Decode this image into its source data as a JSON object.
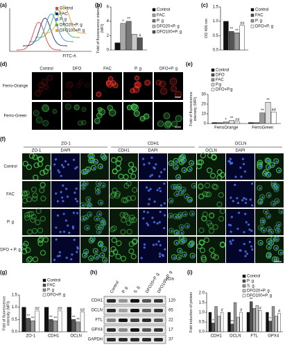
{
  "panel_labels": [
    "(a)",
    "(b)",
    "(c)",
    "(d)",
    "(e)",
    "(f)",
    "(g)",
    "(h)",
    "(i)"
  ],
  "flow": {
    "legend": [
      {
        "name": "Control",
        "color": "#e8413c"
      },
      {
        "name": "FAC",
        "color": "#1f2f6b"
      },
      {
        "name": "P. g",
        "color": "#3d8fd6"
      },
      {
        "name": "DFO20+P. g",
        "color": "#4caf50"
      },
      {
        "name": "DFO100+P. g",
        "color": "#f0a030"
      }
    ],
    "xlabel": "FITC-A"
  },
  "chart_data": [
    {
      "type": "bar",
      "ylabel": "Fold of fluorescence intensity (MFI)",
      "categories": [
        null
      ],
      "series": [
        {
          "name": "Control",
          "color": "#111111",
          "values": [
            1
          ]
        },
        {
          "name": "FAC",
          "color": "#a8a8a8",
          "values": [
            3.7
          ],
          "sig": [
            "*"
          ]
        },
        {
          "name": "P. g",
          "color": "#777777",
          "values": [
            4.0
          ],
          "sig": [
            "**"
          ]
        },
        {
          "name": "DFO20+P. g",
          "color": "#c8c8c8",
          "values": [
            2.2
          ]
        },
        {
          "name": "DFO100+P. g",
          "color": "#555555",
          "values": [
            1.7
          ],
          "sig": [
            "#"
          ]
        }
      ],
      "ylim": [
        0,
        6
      ],
      "yticks": [
        0,
        2,
        4,
        6
      ]
    },
    {
      "type": "bar",
      "ylabel": "OD 405 nm",
      "categories": [
        null
      ],
      "series": [
        {
          "name": "Control",
          "color": "#111111",
          "values": [
            1.0
          ]
        },
        {
          "name": "FAC",
          "color": "#555555",
          "values": [
            0.65
          ],
          "sig": [
            "**"
          ]
        },
        {
          "name": "P. g",
          "color": "#999999",
          "values": [
            0.6
          ],
          "sig": [
            "**"
          ]
        },
        {
          "name": "DFO+P. g",
          "color": "#ffffff",
          "values": [
            0.85
          ],
          "sig": [
            "##"
          ]
        }
      ],
      "ylim": [
        0,
        1.5
      ],
      "yticks": [
        {
          "value": 0,
          "label": "0.0"
        },
        {
          "value": 0.5,
          "label": "0.5"
        },
        {
          "value": 1,
          "label": "1.0"
        },
        {
          "value": 1.5,
          "label": "1.5"
        }
      ]
    },
    {
      "type": "bar",
      "ylabel": "Fold of fluorescence intensity (MFI)",
      "categories": [
        "FerroOrange",
        "FerroGreen"
      ],
      "series": [
        {
          "name": "Control",
          "color": "#111111",
          "values": [
            1,
            1
          ]
        },
        {
          "name": "DFO",
          "color": "#555555",
          "values": [
            0.9,
            0.9
          ]
        },
        {
          "name": "FAC",
          "color": "#999999",
          "values": [
            1.6,
            11
          ],
          "sig": [
            "*",
            "**"
          ]
        },
        {
          "name": "P.g",
          "color": "#dddddd",
          "values": [
            3.2,
            22
          ],
          "sig": [
            "**",
            "**"
          ]
        },
        {
          "name": "DFO+P.g",
          "color": "#ffffff",
          "values": [
            1.5,
            12
          ],
          "sig": [
            "##",
            "##"
          ]
        }
      ],
      "ylim": [
        0,
        30
      ],
      "yticks": [
        0,
        10,
        20,
        30
      ]
    },
    {
      "type": "bar",
      "ylabel": "Fold of fluorescence intensity (MFI)",
      "categories": [
        "ZO-1",
        "CDH1",
        "OCLN"
      ],
      "series": [
        {
          "name": "Control",
          "color": "#111111",
          "values": [
            1,
            1,
            1
          ]
        },
        {
          "name": "FAC",
          "color": "#555555",
          "values": [
            0.55,
            0.5,
            0.5
          ],
          "sig": [
            "**",
            "**",
            "**"
          ]
        },
        {
          "name": "P. g",
          "color": "#999999",
          "values": [
            0.45,
            0.45,
            0.4
          ],
          "sig": [
            "**",
            "**",
            "**"
          ]
        },
        {
          "name": "DFO+P. g",
          "color": "#ffffff",
          "values": [
            0.85,
            0.85,
            0.8
          ],
          "sig": [
            "##",
            "##",
            "##"
          ]
        }
      ],
      "ylim": [
        0,
        1.5
      ],
      "yticks": [
        {
          "value": 0,
          "label": "0.0"
        },
        {
          "value": 0.5,
          "label": "0.5"
        },
        {
          "value": 1,
          "label": "1.0"
        },
        {
          "value": 1.5,
          "label": "1.5"
        }
      ]
    },
    {
      "type": "bar",
      "ylabel": "Fold induction of protein",
      "categories": [
        "CDH1",
        "OCLN",
        "FTL",
        "GPX4"
      ],
      "series": [
        {
          "name": "Control",
          "color": "#111111",
          "values": [
            1,
            1,
            1,
            1
          ]
        },
        {
          "name": "P. g",
          "color": "#555555",
          "values": [
            0.45,
            0.4,
            1.55,
            0.55
          ],
          "sig": [
            "*",
            "**",
            "**",
            "*"
          ]
        },
        {
          "name": "S. g",
          "color": "#999999",
          "values": [
            1.3,
            1.5,
            1.2,
            1.3
          ]
        },
        {
          "name": "DFO20+P. g",
          "color": "#cccccc",
          "values": [
            0.8,
            0.75,
            1.35,
            0.8
          ]
        },
        {
          "name": "DFO100+P. g",
          "color": "#ffffff",
          "values": [
            1.0,
            1.0,
            1.1,
            0.95
          ],
          "sig": [
            "#",
            "#",
            "#",
            "#"
          ]
        }
      ],
      "ylim": [
        0,
        2
      ],
      "yticks": [
        {
          "value": 0,
          "label": "0.0"
        },
        {
          "value": 0.5,
          "label": "0.5"
        },
        {
          "value": 1,
          "label": "1.0"
        },
        {
          "value": 1.5,
          "label": "1.5"
        },
        {
          "value": 2,
          "label": "2.0"
        }
      ]
    }
  ],
  "ferro": {
    "columns": [
      "Control",
      "DFO",
      "FAC",
      "P. g",
      "DFO+P. g"
    ],
    "rows": [
      "Ferro-Orange",
      "Ferro-Green"
    ]
  },
  "junction": {
    "groups": [
      "ZO-1",
      "CDH1",
      "OCLN"
    ],
    "channels": [
      [
        "ZO-1",
        "DAPI"
      ],
      [
        "CDH1",
        "DAPI"
      ],
      [
        "OCLN",
        "DAPI"
      ]
    ],
    "rows": [
      "Control",
      "FAC",
      "P. g",
      "DFO + P. g"
    ]
  },
  "blot": {
    "lanes": [
      "Control",
      "P. g",
      "S. g",
      "DFO20+P. g",
      "DFO100+P. g"
    ],
    "unit": "kDa",
    "rows": [
      {
        "name": "CDH1",
        "kda": "120"
      },
      {
        "name": "OCLN",
        "kda": "65"
      },
      {
        "name": "FTL",
        "kda": "22"
      },
      {
        "name": "GPX4",
        "kda": "17"
      },
      {
        "name": "GAPDH",
        "kda": "37"
      }
    ]
  }
}
